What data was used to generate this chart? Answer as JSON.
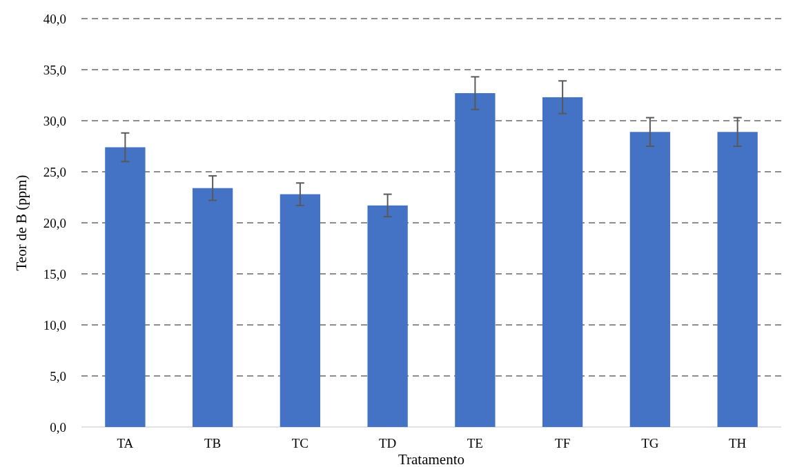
{
  "chart_data": {
    "type": "bar",
    "xlabel": "Tratamento",
    "ylabel": "Teor de B (ppm)",
    "categories": [
      "TA",
      "TB",
      "TC",
      "TD",
      "TE",
      "TF",
      "TG",
      "TH"
    ],
    "values": [
      27.4,
      23.4,
      22.8,
      21.7,
      32.7,
      32.3,
      28.9,
      28.9
    ],
    "errors": [
      1.4,
      1.2,
      1.1,
      1.1,
      1.6,
      1.6,
      1.4,
      1.4
    ],
    "color": "#4472c4",
    "ylim": [
      0,
      40
    ],
    "yticks": [
      {
        "value": 0,
        "label": "0,0"
      },
      {
        "value": 5,
        "label": "5,0"
      },
      {
        "value": 10,
        "label": "10,0"
      },
      {
        "value": 15,
        "label": "15,0"
      },
      {
        "value": 20,
        "label": "20,0"
      },
      {
        "value": 25,
        "label": "25,0"
      },
      {
        "value": 30,
        "label": "30,0"
      },
      {
        "value": 35,
        "label": "35,0"
      },
      {
        "value": 40,
        "label": "40,0"
      }
    ],
    "grid": "y"
  }
}
